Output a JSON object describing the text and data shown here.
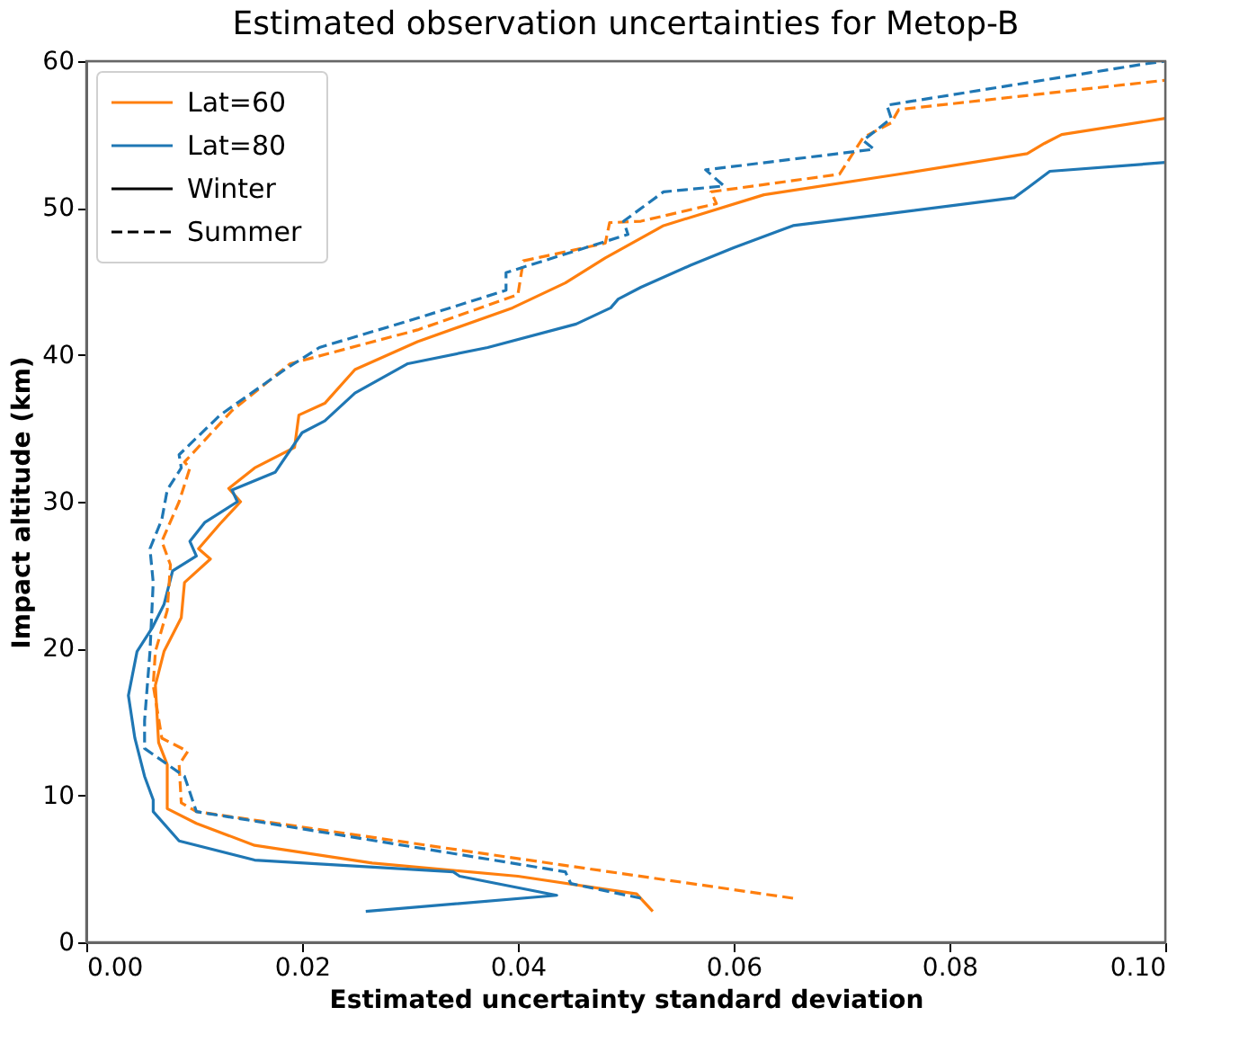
{
  "chart_data": {
    "type": "line",
    "title": "Estimated observation uncertainties for Metop-B",
    "xlabel": "Estimated uncertainty standard deviation",
    "ylabel": "Impact altitude (km)",
    "xlim": [
      0,
      0.1
    ],
    "ylim": [
      0,
      60
    ],
    "xticks": [
      {
        "value": 0,
        "label": "0.00"
      },
      {
        "value": 0.02,
        "label": "0.02"
      },
      {
        "value": 0.04,
        "label": "0.04"
      },
      {
        "value": 0.06,
        "label": "0.06"
      },
      {
        "value": 0.08,
        "label": "0.08"
      },
      {
        "value": 0.1,
        "label": "0.10"
      }
    ],
    "yticks": [
      0,
      10,
      20,
      30,
      40,
      50,
      60
    ],
    "grid": false,
    "legend": "top left",
    "annotations": [
      "Winter",
      "Summer"
    ],
    "series": [
      {
        "name": "Lat=60",
        "color": "#ff7f0e",
        "line_style": "solid",
        "x": [
          0.0525,
          0.051,
          0.04,
          0.0265,
          0.0156,
          0.0102,
          0.0075,
          0.0075,
          0.0067,
          0.0064,
          0.0072,
          0.0088,
          0.0091,
          0.0115,
          0.0104,
          0.0124,
          0.0143,
          0.0132,
          0.0156,
          0.0193,
          0.0197,
          0.0221,
          0.0249,
          0.0307,
          0.0395,
          0.0444,
          0.0481,
          0.0535,
          0.0628,
          0.0753,
          0.0872,
          0.0888,
          0.0904,
          0.1
        ],
        "values": [
          2.1,
          3.3,
          4.5,
          5.4,
          6.6,
          8.1,
          9.1,
          12.1,
          13.6,
          17.5,
          19.8,
          22.1,
          24.5,
          26.1,
          26.8,
          28.5,
          30.0,
          30.9,
          32.3,
          33.7,
          35.9,
          36.7,
          39.0,
          40.9,
          43.2,
          44.9,
          46.6,
          48.8,
          50.9,
          52.3,
          53.7,
          54.4,
          55.0,
          56.1
        ]
      },
      {
        "name": "Lat=80",
        "color": "#1f77b4",
        "line_style": "solid",
        "x": [
          0.0259,
          0.0436,
          0.0346,
          0.034,
          0.0156,
          0.0086,
          0.0062,
          0.0062,
          0.0054,
          0.0045,
          0.0039,
          0.0047,
          0.0061,
          0.0072,
          0.008,
          0.0102,
          0.0096,
          0.011,
          0.014,
          0.0135,
          0.0175,
          0.02,
          0.0221,
          0.0249,
          0.0298,
          0.0372,
          0.0454,
          0.0486,
          0.0493,
          0.0514,
          0.056,
          0.06,
          0.0655,
          0.0742,
          0.086,
          0.0873,
          0.0893,
          0.1
        ],
        "values": [
          2.1,
          3.2,
          4.5,
          4.8,
          5.6,
          6.9,
          8.9,
          9.7,
          11.3,
          13.9,
          16.8,
          19.8,
          21.4,
          23.0,
          25.3,
          26.3,
          27.3,
          28.6,
          30.0,
          30.8,
          32.0,
          34.7,
          35.5,
          37.4,
          39.4,
          40.5,
          42.1,
          43.2,
          43.8,
          44.6,
          46.1,
          47.3,
          48.8,
          49.6,
          50.7,
          51.4,
          52.5,
          53.1
        ]
      },
      {
        "color": "#ff7f0e",
        "line_style": "dashed",
        "x": [
          0.0655,
          0.04,
          0.0102,
          0.0088,
          0.0086,
          0.0094,
          0.007,
          0.0062,
          0.0064,
          0.0075,
          0.0078,
          0.007,
          0.0086,
          0.0096,
          0.0091,
          0.0135,
          0.0189,
          0.0307,
          0.04,
          0.0405,
          0.0481,
          0.0485,
          0.0514,
          0.0584,
          0.0579,
          0.0698,
          0.072,
          0.0746,
          0.0753,
          0.1
        ],
        "values": [
          3.0,
          5.7,
          8.9,
          9.5,
          12.1,
          13.0,
          13.9,
          17.5,
          19.8,
          22.6,
          25.7,
          27.3,
          30.0,
          32.3,
          32.7,
          36.2,
          39.4,
          41.7,
          44.1,
          46.4,
          47.6,
          49.0,
          49.1,
          50.3,
          51.1,
          52.3,
          54.8,
          55.8,
          56.7,
          58.7
        ]
      },
      {
        "color": "#1f77b4",
        "line_style": "dashed",
        "x": [
          0.0514,
          0.0449,
          0.0444,
          0.0102,
          0.0091,
          0.0054,
          0.0054,
          0.0059,
          0.0062,
          0.0059,
          0.007,
          0.0075,
          0.0088,
          0.0086,
          0.0124,
          0.0184,
          0.0216,
          0.0307,
          0.0389,
          0.0389,
          0.0502,
          0.0498,
          0.0535,
          0.0591,
          0.0574,
          0.073,
          0.072,
          0.0746,
          0.0742,
          0.098,
          0.1
        ],
        "values": [
          3.0,
          4.0,
          4.8,
          8.9,
          11.3,
          13.2,
          15.1,
          19.8,
          24.5,
          26.8,
          28.8,
          30.8,
          32.3,
          33.2,
          35.9,
          39.0,
          40.5,
          42.5,
          44.4,
          45.6,
          48.2,
          49.1,
          51.1,
          51.5,
          52.6,
          54.0,
          54.6,
          56.1,
          57.0,
          59.8,
          60.0
        ]
      }
    ]
  }
}
